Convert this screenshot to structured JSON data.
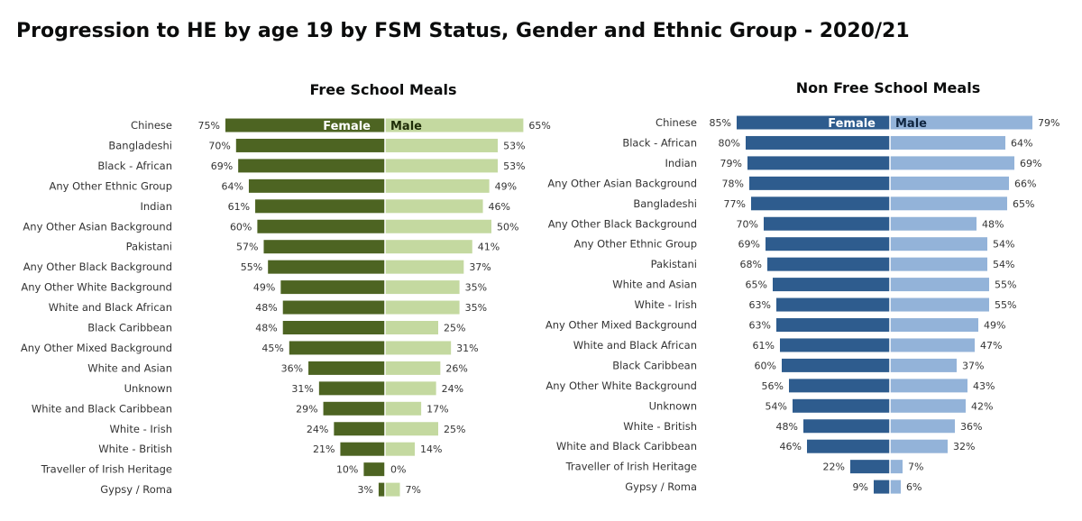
{
  "title": "Progression to HE by age 19 by FSM Status, Gender and Ethnic Group - 2020/21",
  "chart_data": [
    {
      "type": "bar",
      "title": "Free School Meals",
      "female_label": "Female",
      "male_label": "Male",
      "colors": {
        "female": "#4d6422",
        "male": "#c4d9a0",
        "female_label_text": "#ffffff",
        "male_label_text": "#1f2d08"
      },
      "categories": [
        "Chinese",
        "Bangladeshi",
        "Black - African",
        "Any Other Ethnic Group",
        "Indian",
        "Any Other Asian Background",
        "Pakistani",
        "Any Other Black Background",
        "Any Other White Background",
        "White and Black African",
        "Black Caribbean",
        "Any Other Mixed Background",
        "White and Asian",
        "Unknown",
        "White and Black Caribbean",
        "White - Irish",
        "White - British",
        "Traveller of Irish Heritage",
        "Gypsy / Roma"
      ],
      "series": [
        {
          "name": "Female",
          "values": [
            75,
            70,
            69,
            64,
            61,
            60,
            57,
            55,
            49,
            48,
            48,
            45,
            36,
            31,
            29,
            24,
            21,
            10,
            3
          ]
        },
        {
          "name": "Male",
          "values": [
            65,
            53,
            53,
            49,
            46,
            50,
            41,
            37,
            35,
            35,
            25,
            31,
            26,
            24,
            17,
            25,
            14,
            0,
            7
          ]
        }
      ],
      "female_labels": [
        "75%",
        "70%",
        "69%",
        "64%",
        "61%",
        "60%",
        "57%",
        "55%",
        "49%",
        "48%",
        "48%",
        "45%",
        "36%",
        "31%",
        "29%",
        "24%",
        "21%",
        "10%",
        "3%"
      ],
      "male_labels": [
        "65%",
        "53%",
        "53%",
        "49%",
        "46%",
        "50%",
        "41%",
        "37%",
        "35%",
        "35%",
        "25%",
        "31%",
        "26%",
        "24%",
        "17%",
        "25%",
        "14%",
        "0%",
        "7%"
      ]
    },
    {
      "type": "bar",
      "title": "Non Free School Meals",
      "female_label": "Female",
      "male_label": "Male",
      "colors": {
        "female": "#2e5c8e",
        "male": "#93b3d9",
        "female_label_text": "#ffffff",
        "male_label_text": "#0f2540"
      },
      "categories": [
        "Chinese",
        "Black - African",
        "Indian",
        "Any Other Asian Background",
        "Bangladeshi",
        "Any Other Black Background",
        "Any Other Ethnic Group",
        "Pakistani",
        "White and Asian",
        "White - Irish",
        "Any Other Mixed Background",
        "White and Black African",
        "Black Caribbean",
        "Any Other White Background",
        "Unknown",
        "White - British",
        "White and Black Caribbean",
        "Traveller of Irish Heritage",
        "Gypsy / Roma"
      ],
      "series": [
        {
          "name": "Female",
          "values": [
            85,
            80,
            79,
            78,
            77,
            70,
            69,
            68,
            65,
            63,
            63,
            61,
            60,
            56,
            54,
            48,
            46,
            22,
            9
          ]
        },
        {
          "name": "Male",
          "values": [
            79,
            64,
            69,
            66,
            65,
            48,
            54,
            54,
            55,
            55,
            49,
            47,
            37,
            43,
            42,
            36,
            32,
            7,
            6
          ]
        }
      ],
      "female_labels": [
        "85%",
        "80%",
        "79%",
        "78%",
        "77%",
        "70%",
        "69%",
        "68%",
        "65%",
        "63%",
        "63%",
        "61%",
        "60%",
        "56%",
        "54%",
        "48%",
        "46%",
        "22%",
        "9%"
      ],
      "male_labels": [
        "79%",
        "64%",
        "69%",
        "66%",
        "65%",
        "48%",
        "54%",
        "54%",
        "55%",
        "55%",
        "49%",
        "47%",
        "37%",
        "43%",
        "42%",
        "36%",
        "32%",
        "7%",
        "6%"
      ]
    }
  ]
}
